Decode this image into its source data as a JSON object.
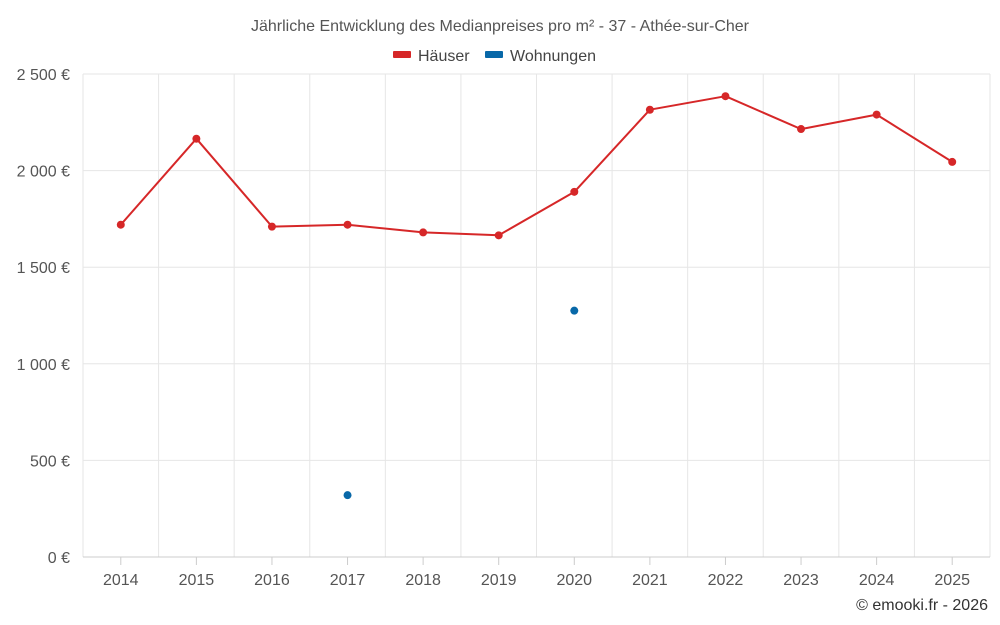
{
  "chart_data": {
    "type": "line",
    "title": "Jährliche Entwicklung des Medianpreises pro m² - 37 - Athée-sur-Cher",
    "categories": [
      "2014",
      "2015",
      "2016",
      "2017",
      "2018",
      "2019",
      "2020",
      "2021",
      "2022",
      "2023",
      "2024",
      "2025"
    ],
    "ylim": [
      0,
      2500
    ],
    "yticks": [
      0,
      500,
      1000,
      1500,
      2000,
      2500
    ],
    "ytick_labels": [
      "0 €",
      "500 €",
      "1 000 €",
      "1 500 €",
      "2 000 €",
      "2 500 €"
    ],
    "grid": true,
    "legend_position": "top-center",
    "series": [
      {
        "name": "Häuser",
        "color": "#d62728",
        "values": [
          1720,
          2165,
          1710,
          1720,
          1680,
          1665,
          1890,
          2315,
          2385,
          2215,
          2290,
          2045
        ]
      },
      {
        "name": "Wohnungen",
        "color": "#0868a8",
        "values": [
          null,
          null,
          null,
          320,
          null,
          null,
          1275,
          null,
          null,
          null,
          null,
          null
        ]
      }
    ]
  },
  "credit": "© emooki.fr - 2026"
}
